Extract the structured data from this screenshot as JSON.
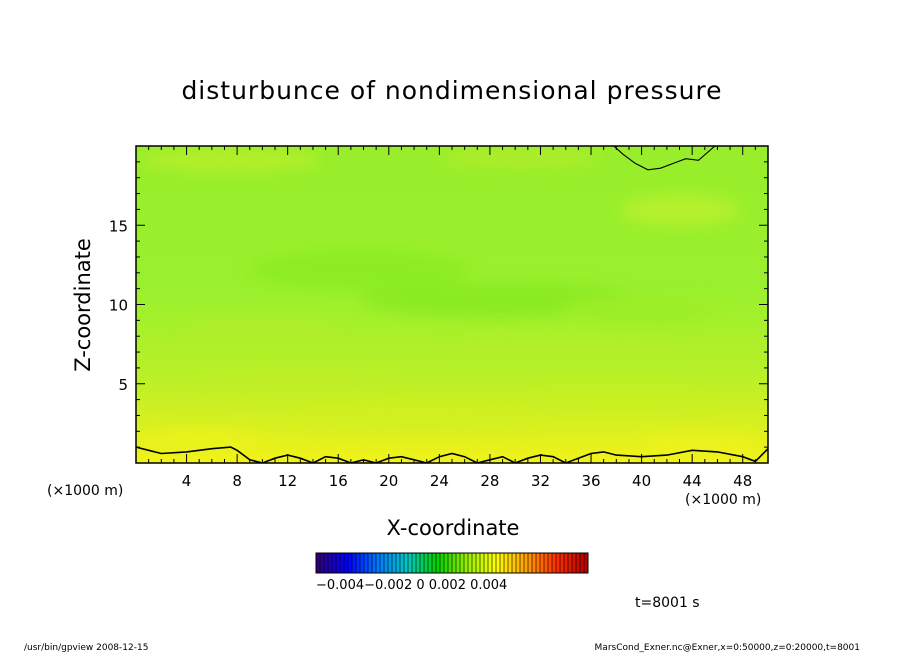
{
  "chart_data": {
    "type": "heatmap",
    "title": "disturbunce of nondimensional pressure",
    "xlabel": "X-coordinate",
    "ylabel": "Z-coordinate",
    "x_unit_left": "(×1000 m)",
    "x_unit_right": "(×1000 m)",
    "xlim": [
      0,
      50
    ],
    "ylim": [
      0,
      20
    ],
    "x_ticks": [
      4,
      8,
      12,
      16,
      20,
      24,
      28,
      32,
      36,
      40,
      44,
      48
    ],
    "x_tick_labels": [
      "4",
      "8",
      "12",
      "16",
      "20",
      "24",
      "28",
      "32",
      "36",
      "40",
      "44",
      "48"
    ],
    "y_ticks": [
      5,
      10,
      15
    ],
    "y_tick_labels": [
      "5",
      "10",
      "15"
    ],
    "x_minor_step": 1,
    "y_minor_step": 1,
    "colorbar": {
      "range": [
        -0.005,
        0.005
      ],
      "tick_text": "−0.004−0.002  0   0.002  0.004",
      "colors": [
        "#30007a",
        "#0000ff",
        "#0078ff",
        "#00c8c8",
        "#00d200",
        "#96f000",
        "#ffff00",
        "#ffa000",
        "#ff3000",
        "#b40000"
      ]
    },
    "field_note": "values near zero everywhere (yellow-green); slightly positive (yellow) near the surface",
    "contours": [
      {
        "x": [
          0,
          1,
          2,
          4,
          6,
          7.5,
          8,
          9,
          10,
          11,
          12,
          13,
          14,
          15,
          16,
          17,
          18,
          19,
          20,
          21,
          22,
          23,
          24,
          25,
          26,
          27,
          28,
          29,
          30,
          31,
          32,
          33,
          34,
          35,
          36,
          37,
          38,
          40,
          42,
          44,
          46,
          48,
          49,
          50
        ],
        "y": [
          1.0,
          0.8,
          0.6,
          0.7,
          0.9,
          1.0,
          0.8,
          0.2,
          0.0,
          0.3,
          0.5,
          0.3,
          0.0,
          0.4,
          0.3,
          0.0,
          0.2,
          0.0,
          0.3,
          0.4,
          0.2,
          0.0,
          0.4,
          0.6,
          0.4,
          0.0,
          0.2,
          0.4,
          0.0,
          0.3,
          0.5,
          0.4,
          0.0,
          0.3,
          0.6,
          0.7,
          0.5,
          0.4,
          0.5,
          0.8,
          0.7,
          0.4,
          0.1,
          0.9
        ]
      },
      {
        "x": [
          37.8,
          38.5,
          39.5,
          40.5,
          41.5,
          42.5,
          43.5,
          44.5,
          45.8
        ],
        "y": [
          20,
          19.5,
          18.9,
          18.5,
          18.6,
          18.9,
          19.2,
          19.1,
          20
        ]
      }
    ]
  },
  "labels": {
    "time": "t=8001 s",
    "footer_left": "/usr/bin/gpview   2008-12-15",
    "footer_right": "MarsCond_Exner.nc@Exner,x=0:50000,z=0:20000,t=8001"
  }
}
